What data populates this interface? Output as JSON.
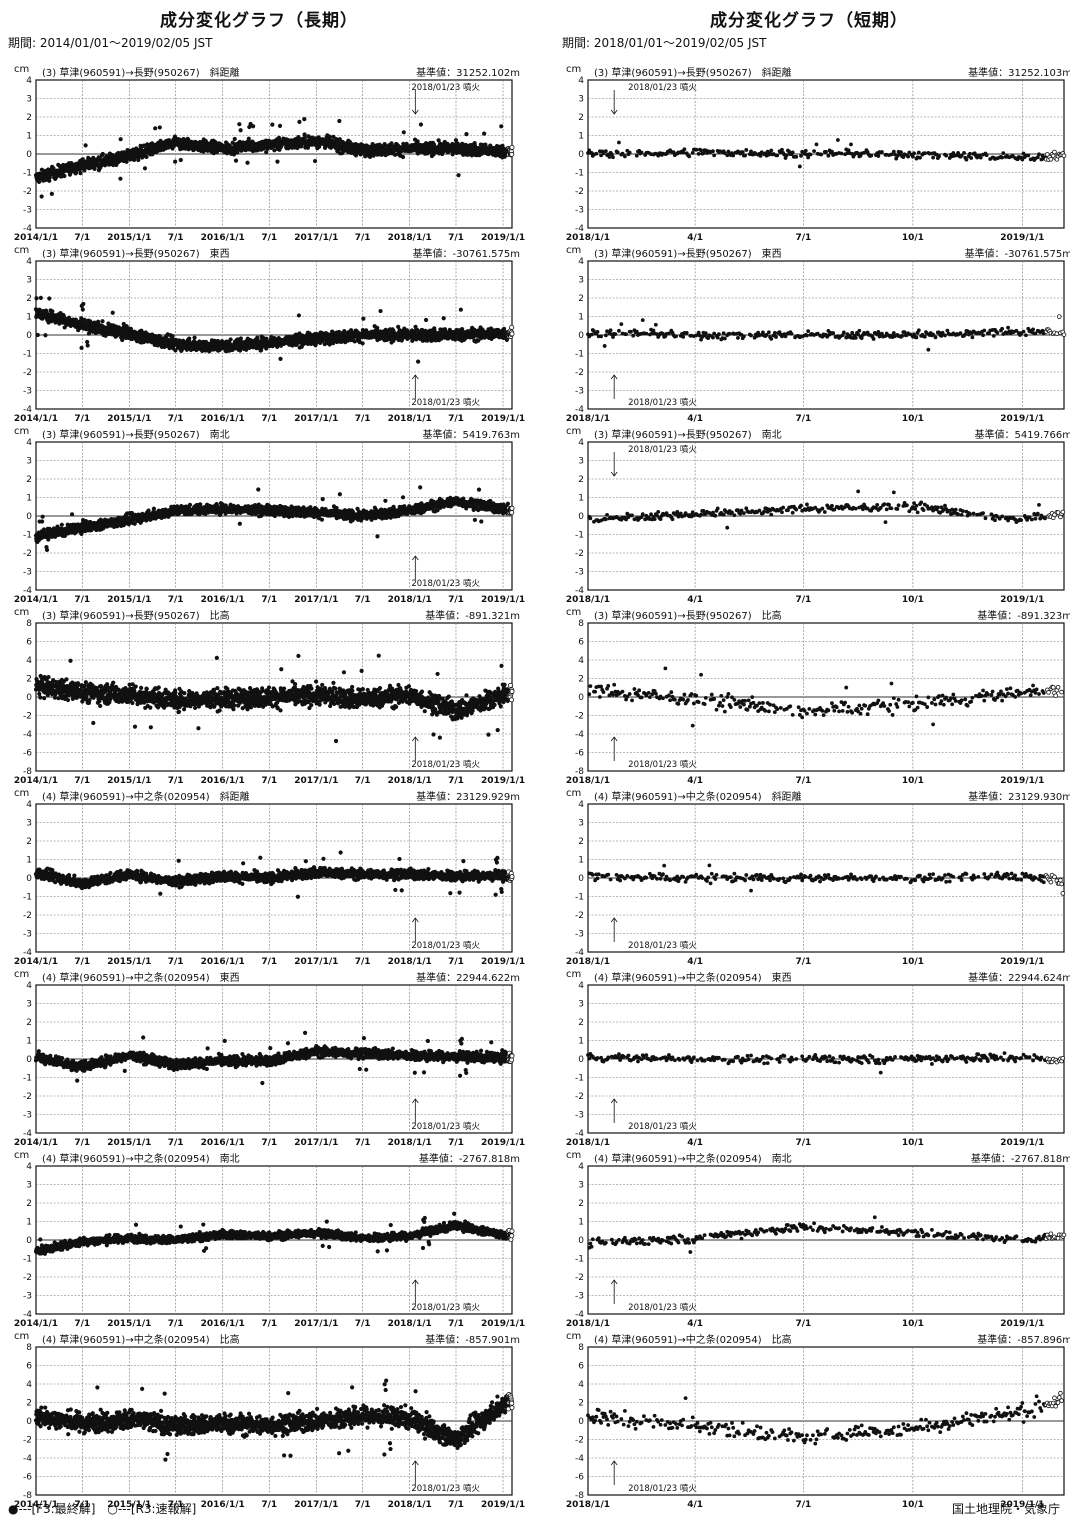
{
  "header": {
    "left_title": "成分変化グラフ（長期）",
    "left_period": "期間: 2014/01/01～2019/02/05 JST",
    "right_title": "成分変化グラフ（短期）",
    "right_period": "期間: 2018/01/01～2019/02/05 JST"
  },
  "footer": {
    "legend": "●---[F3:最終解]　○---[R3:速報解]",
    "credit": "国土地理院・気象庁"
  },
  "unit": "cm",
  "annotation_text": "2018/01/23 噴火",
  "long_xticks": [
    "2014/1/1",
    "7/1",
    "2015/1/1",
    "7/1",
    "2016/1/1",
    "7/1",
    "2017/1/1",
    "7/1",
    "2018/1/1",
    "7/1",
    "2019/1/1"
  ],
  "short_xticks": [
    "2018/1/1",
    "4/1",
    "7/1",
    "10/1",
    "2019/1/1"
  ],
  "chart_data": [
    {
      "type": "scatter",
      "label": "(3) 草津(960591)→長野(950267)　斜距離",
      "base": "基準値：31252.102m",
      "ylim": [
        -4,
        4
      ],
      "ticks": [
        4,
        3,
        2,
        1,
        0,
        -1,
        -2,
        -3,
        -4
      ],
      "x_range": [
        "2014/1/1",
        "2019/2/5"
      ],
      "series_profile": [
        [
          "2014/1/1",
          -1.3
        ],
        [
          "2014/7/1",
          -0.6
        ],
        [
          "2015/1/1",
          -0.1
        ],
        [
          "2015/7/1",
          0.6
        ],
        [
          "2016/1/1",
          0.3
        ],
        [
          "2016/7/1",
          0.5
        ],
        [
          "2017/1/1",
          0.7
        ],
        [
          "2017/7/1",
          0.2
        ],
        [
          "2018/1/1",
          0.3
        ],
        [
          "2018/7/1",
          0.3
        ],
        [
          "2019/2/5",
          0.1
        ]
      ],
      "scatter_cm": 0.3,
      "annotation": "above"
    },
    {
      "type": "scatter",
      "label": "(3) 草津(960591)→長野(950267)　斜距離",
      "base": "基準値：31252.103m",
      "ylim": [
        -4,
        4
      ],
      "ticks": [
        4,
        3,
        2,
        1,
        0,
        -1,
        -2,
        -3,
        -4
      ],
      "x_range": [
        "2018/1/1",
        "2019/2/5"
      ],
      "series_profile": [
        [
          "2018/1/1",
          0.0
        ],
        [
          "2018/4/1",
          0.1
        ],
        [
          "2018/7/1",
          0.0
        ],
        [
          "2018/10/1",
          0.0
        ],
        [
          "2019/1/1",
          -0.2
        ],
        [
          "2019/2/5",
          -0.1
        ]
      ],
      "scatter_cm": 0.2,
      "annotation": "above"
    },
    {
      "type": "scatter",
      "label": "(3) 草津(960591)→長野(950267)　東西",
      "base": "基準値：-30761.575m",
      "ylim": [
        -4,
        4
      ],
      "ticks": [
        4,
        3,
        2,
        1,
        0,
        -1,
        -2,
        -3,
        -4
      ],
      "x_range": [
        "2014/1/1",
        "2019/2/5"
      ],
      "series_profile": [
        [
          "2014/1/1",
          1.2
        ],
        [
          "2014/7/1",
          0.5
        ],
        [
          "2015/1/1",
          0.1
        ],
        [
          "2015/7/1",
          -0.5
        ],
        [
          "2016/1/1",
          -0.6
        ],
        [
          "2016/7/1",
          -0.4
        ],
        [
          "2017/1/1",
          -0.2
        ],
        [
          "2017/7/1",
          0.0
        ],
        [
          "2018/1/1",
          0.0
        ],
        [
          "2018/7/1",
          0.0
        ],
        [
          "2019/2/5",
          0.1
        ]
      ],
      "scatter_cm": 0.3,
      "annotation": "below"
    },
    {
      "type": "scatter",
      "label": "(3) 草津(960591)→長野(950267)　東西",
      "base": "基準値：-30761.575m",
      "ylim": [
        -4,
        4
      ],
      "ticks": [
        4,
        3,
        2,
        1,
        0,
        -1,
        -2,
        -3,
        -4
      ],
      "x_range": [
        "2018/1/1",
        "2019/2/5"
      ],
      "series_profile": [
        [
          "2018/1/1",
          0.1
        ],
        [
          "2018/4/1",
          0.0
        ],
        [
          "2018/7/1",
          0.0
        ],
        [
          "2018/10/1",
          0.0
        ],
        [
          "2019/1/1",
          0.2
        ],
        [
          "2019/2/5",
          0.1
        ]
      ],
      "scatter_cm": 0.2,
      "annotation": "below"
    },
    {
      "type": "scatter",
      "label": "(3) 草津(960591)→長野(950267)　南北",
      "base": "基準値：5419.763m",
      "ylim": [
        -4,
        4
      ],
      "ticks": [
        4,
        3,
        2,
        1,
        0,
        -1,
        -2,
        -3,
        -4
      ],
      "x_range": [
        "2014/1/1",
        "2019/2/5"
      ],
      "series_profile": [
        [
          "2014/1/1",
          -1.1
        ],
        [
          "2014/7/1",
          -0.6
        ],
        [
          "2015/1/1",
          -0.2
        ],
        [
          "2015/7/1",
          0.3
        ],
        [
          "2016/1/1",
          0.4
        ],
        [
          "2016/7/1",
          0.3
        ],
        [
          "2017/1/1",
          0.2
        ],
        [
          "2017/7/1",
          0.0
        ],
        [
          "2018/1/1",
          0.3
        ],
        [
          "2018/7/1",
          0.8
        ],
        [
          "2019/2/5",
          0.3
        ]
      ],
      "scatter_cm": 0.25,
      "annotation": "below"
    },
    {
      "type": "scatter",
      "label": "(3) 草津(960591)→長野(950267)　南北",
      "base": "基準値：5419.766m",
      "ylim": [
        -4,
        4
      ],
      "ticks": [
        4,
        3,
        2,
        1,
        0,
        -1,
        -2,
        -3,
        -4
      ],
      "x_range": [
        "2018/1/1",
        "2019/2/5"
      ],
      "series_profile": [
        [
          "2018/1/1",
          -0.2
        ],
        [
          "2018/4/1",
          0.1
        ],
        [
          "2018/7/1",
          0.4
        ],
        [
          "2018/10/1",
          0.5
        ],
        [
          "2019/1/1",
          -0.2
        ],
        [
          "2019/2/5",
          0.2
        ]
      ],
      "scatter_cm": 0.2,
      "annotation": "above"
    },
    {
      "type": "scatter",
      "label": "(3) 草津(960591)→長野(950267)　比高",
      "base": "基準値：-891.321m",
      "ylim": [
        -8,
        8
      ],
      "ticks": [
        8,
        6,
        4,
        2,
        0,
        -2,
        -4,
        -6,
        -8
      ],
      "x_range": [
        "2014/1/1",
        "2019/2/5"
      ],
      "series_profile": [
        [
          "2014/1/1",
          1.2
        ],
        [
          "2014/7/1",
          0.5
        ],
        [
          "2015/1/1",
          0.3
        ],
        [
          "2015/7/1",
          -0.3
        ],
        [
          "2016/1/1",
          -0.2
        ],
        [
          "2016/7/1",
          0.0
        ],
        [
          "2017/1/1",
          0.2
        ],
        [
          "2017/7/1",
          -0.2
        ],
        [
          "2018/1/1",
          0.2
        ],
        [
          "2018/7/1",
          -1.5
        ],
        [
          "2019/2/5",
          0.5
        ]
      ],
      "scatter_cm": 1.0,
      "annotation": "below"
    },
    {
      "type": "scatter",
      "label": "(3) 草津(960591)→長野(950267)　比高",
      "base": "基準値：-891.323m",
      "ylim": [
        -8,
        8
      ],
      "ticks": [
        8,
        6,
        4,
        2,
        0,
        -2,
        -4,
        -6,
        -8
      ],
      "x_range": [
        "2018/1/1",
        "2019/2/5"
      ],
      "series_profile": [
        [
          "2018/1/1",
          0.8
        ],
        [
          "2018/4/1",
          -0.3
        ],
        [
          "2018/7/1",
          -1.5
        ],
        [
          "2018/10/1",
          -0.8
        ],
        [
          "2019/1/1",
          0.5
        ],
        [
          "2019/2/5",
          0.8
        ]
      ],
      "scatter_cm": 0.7,
      "annotation": "below"
    },
    {
      "type": "scatter",
      "label": "(4) 草津(960591)→中之条(020954)　斜距離",
      "base": "基準値：23129.929m",
      "ylim": [
        -4,
        4
      ],
      "ticks": [
        4,
        3,
        2,
        1,
        0,
        -1,
        -2,
        -3,
        -4
      ],
      "x_range": [
        "2014/1/1",
        "2019/2/5"
      ],
      "series_profile": [
        [
          "2014/1/1",
          0.3
        ],
        [
          "2014/7/1",
          -0.3
        ],
        [
          "2015/1/1",
          0.2
        ],
        [
          "2015/7/1",
          -0.2
        ],
        [
          "2016/1/1",
          0.1
        ],
        [
          "2016/7/1",
          0.0
        ],
        [
          "2017/1/1",
          0.3
        ],
        [
          "2017/7/1",
          0.2
        ],
        [
          "2018/1/1",
          0.2
        ],
        [
          "2018/7/1",
          0.1
        ],
        [
          "2019/2/5",
          0.1
        ]
      ],
      "scatter_cm": 0.25,
      "annotation": "below"
    },
    {
      "type": "scatter",
      "label": "(4) 草津(960591)→中之条(020954)　斜距離",
      "base": "基準値：23129.930m",
      "ylim": [
        -4,
        4
      ],
      "ticks": [
        4,
        3,
        2,
        1,
        0,
        -1,
        -2,
        -3,
        -4
      ],
      "x_range": [
        "2018/1/1",
        "2019/2/5"
      ],
      "series_profile": [
        [
          "2018/1/1",
          0.1
        ],
        [
          "2018/4/1",
          0.0
        ],
        [
          "2018/7/1",
          0.0
        ],
        [
          "2018/10/1",
          0.0
        ],
        [
          "2019/1/1",
          0.1
        ],
        [
          "2019/2/5",
          -0.1
        ]
      ],
      "scatter_cm": 0.2,
      "annotation": "below"
    },
    {
      "type": "scatter",
      "label": "(4) 草津(960591)→中之条(020954)　東西",
      "base": "基準値：22944.622m",
      "ylim": [
        -4,
        4
      ],
      "ticks": [
        4,
        3,
        2,
        1,
        0,
        -1,
        -2,
        -3,
        -4
      ],
      "x_range": [
        "2014/1/1",
        "2019/2/5"
      ],
      "series_profile": [
        [
          "2014/1/1",
          0.1
        ],
        [
          "2014/7/1",
          -0.4
        ],
        [
          "2015/1/1",
          0.2
        ],
        [
          "2015/7/1",
          -0.3
        ],
        [
          "2016/1/1",
          -0.1
        ],
        [
          "2016/7/1",
          -0.1
        ],
        [
          "2017/1/1",
          0.4
        ],
        [
          "2017/7/1",
          0.3
        ],
        [
          "2018/1/1",
          0.2
        ],
        [
          "2018/7/1",
          0.1
        ],
        [
          "2019/2/5",
          0.1
        ]
      ],
      "scatter_cm": 0.25,
      "annotation": "below"
    },
    {
      "type": "scatter",
      "label": "(4) 草津(960591)→中之条(020954)　東西",
      "base": "基準値：22944.624m",
      "ylim": [
        -4,
        4
      ],
      "ticks": [
        4,
        3,
        2,
        1,
        0,
        -1,
        -2,
        -3,
        -4
      ],
      "x_range": [
        "2018/1/1",
        "2019/2/5"
      ],
      "series_profile": [
        [
          "2018/1/1",
          0.1
        ],
        [
          "2018/4/1",
          0.0
        ],
        [
          "2018/7/1",
          0.0
        ],
        [
          "2018/10/1",
          0.0
        ],
        [
          "2019/1/1",
          0.1
        ],
        [
          "2019/2/5",
          -0.1
        ]
      ],
      "scatter_cm": 0.2,
      "annotation": "below"
    },
    {
      "type": "scatter",
      "label": "(4) 草津(960591)→中之条(020954)　南北",
      "base": "基準値：-2767.818m",
      "ylim": [
        -4,
        4
      ],
      "ticks": [
        4,
        3,
        2,
        1,
        0,
        -1,
        -2,
        -3,
        -4
      ],
      "x_range": [
        "2014/1/1",
        "2019/2/5"
      ],
      "series_profile": [
        [
          "2014/1/1",
          -0.6
        ],
        [
          "2014/7/1",
          -0.1
        ],
        [
          "2015/1/1",
          0.1
        ],
        [
          "2015/7/1",
          0.0
        ],
        [
          "2016/1/1",
          0.3
        ],
        [
          "2016/7/1",
          0.2
        ],
        [
          "2017/1/1",
          0.4
        ],
        [
          "2017/7/1",
          0.1
        ],
        [
          "2018/1/1",
          0.2
        ],
        [
          "2018/7/1",
          0.8
        ],
        [
          "2019/2/5",
          0.2
        ]
      ],
      "scatter_cm": 0.2,
      "annotation": "below"
    },
    {
      "type": "scatter",
      "label": "(4) 草津(960591)→中之条(020954)　南北",
      "base": "基準値：-2767.818m",
      "ylim": [
        -4,
        4
      ],
      "ticks": [
        4,
        3,
        2,
        1,
        0,
        -1,
        -2,
        -3,
        -4
      ],
      "x_range": [
        "2018/1/1",
        "2019/2/5"
      ],
      "series_profile": [
        [
          "2018/1/1",
          -0.2
        ],
        [
          "2018/4/1",
          0.1
        ],
        [
          "2018/7/1",
          0.7
        ],
        [
          "2018/10/1",
          0.4
        ],
        [
          "2019/1/1",
          0.0
        ],
        [
          "2019/2/5",
          0.2
        ]
      ],
      "scatter_cm": 0.2,
      "annotation": "below"
    },
    {
      "type": "scatter",
      "label": "(4) 草津(960591)→中之条(020954)　比高",
      "base": "基準値：-857.901m",
      "ylim": [
        -8,
        8
      ],
      "ticks": [
        8,
        6,
        4,
        2,
        0,
        -2,
        -4,
        -6,
        -8
      ],
      "x_range": [
        "2014/1/1",
        "2019/2/5"
      ],
      "series_profile": [
        [
          "2014/1/1",
          0.5
        ],
        [
          "2014/7/1",
          -0.2
        ],
        [
          "2015/1/1",
          0.2
        ],
        [
          "2015/7/1",
          -0.5
        ],
        [
          "2016/1/1",
          -0.3
        ],
        [
          "2016/7/1",
          -0.5
        ],
        [
          "2017/1/1",
          0.0
        ],
        [
          "2017/7/1",
          0.5
        ],
        [
          "2018/1/1",
          0.3
        ],
        [
          "2018/7/1",
          -2.0
        ],
        [
          "2019/2/5",
          2.5
        ]
      ],
      "scatter_cm": 1.0,
      "annotation": "below"
    },
    {
      "type": "scatter",
      "label": "(4) 草津(960591)→中之条(020954)　比高",
      "base": "基準値：-857.896m",
      "ylim": [
        -8,
        8
      ],
      "ticks": [
        8,
        6,
        4,
        2,
        0,
        -2,
        -4,
        -6,
        -8
      ],
      "x_range": [
        "2018/1/1",
        "2019/2/5"
      ],
      "series_profile": [
        [
          "2018/1/1",
          0.5
        ],
        [
          "2018/4/1",
          -0.5
        ],
        [
          "2018/7/1",
          -1.8
        ],
        [
          "2018/10/1",
          -0.8
        ],
        [
          "2019/1/1",
          1.0
        ],
        [
          "2019/2/5",
          2.5
        ]
      ],
      "scatter_cm": 0.8,
      "annotation": "below"
    }
  ]
}
